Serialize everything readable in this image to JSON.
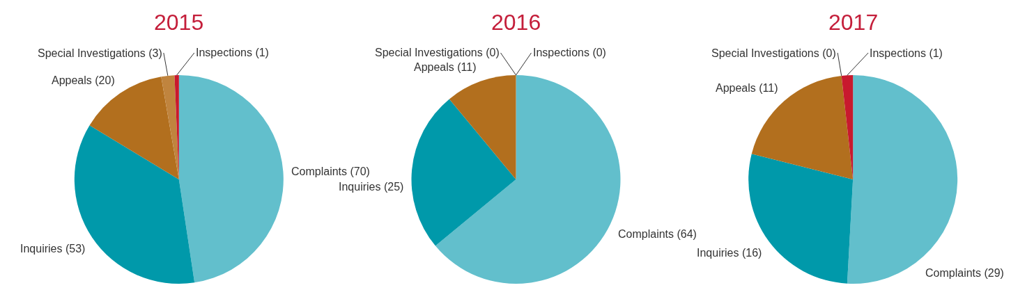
{
  "chart_data": [
    {
      "type": "pie",
      "title": "2015",
      "categories": [
        "Complaints",
        "Inquiries",
        "Appeals",
        "Special Investigations",
        "Inspections"
      ],
      "values": [
        70,
        53,
        20,
        3,
        1
      ],
      "value_labels": [
        "(70)",
        "(53)",
        "(20)",
        "(3)",
        "(1)"
      ],
      "colors": [
        "#62bfcc",
        "#0099aa",
        "#b26f1e",
        "#c0843e",
        "#c8192e"
      ]
    },
    {
      "type": "pie",
      "title": "2016",
      "categories": [
        "Complaints",
        "Inquiries",
        "Appeals",
        "Special Investigations",
        "Inspections"
      ],
      "values": [
        64,
        25,
        11,
        0,
        0
      ],
      "value_labels": [
        "(64)",
        "(25)",
        "(11)",
        "(0)",
        "(0)"
      ],
      "colors": [
        "#62bfcc",
        "#0099aa",
        "#b26f1e",
        "#c0843e",
        "#c8192e"
      ]
    },
    {
      "type": "pie",
      "title": "2017",
      "categories": [
        "Complaints",
        "Inquiries",
        "Appeals",
        "Special Investigations",
        "Inspections"
      ],
      "values": [
        29,
        16,
        11,
        0,
        1
      ],
      "value_labels": [
        "(29)",
        "(16)",
        "(11)",
        "(0)",
        "(1)"
      ],
      "colors": [
        "#62bfcc",
        "#0099aa",
        "#b26f1e",
        "#c0843e",
        "#c8192e"
      ]
    }
  ]
}
